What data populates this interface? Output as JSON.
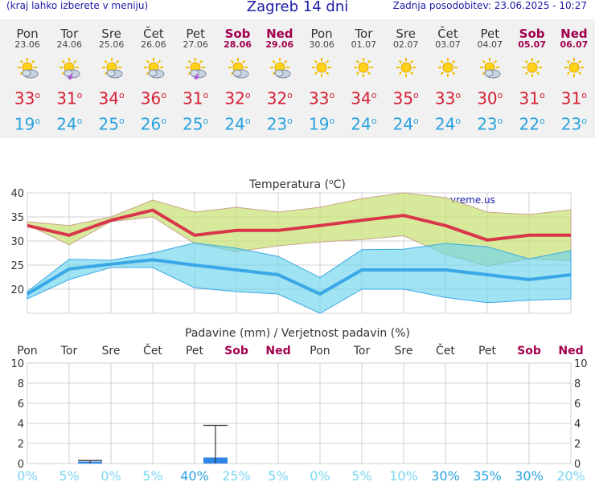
{
  "header": {
    "left_note": "(kraj lahko izberete v meniju)",
    "title": "Zagreb 14 dni",
    "updated": "Zadnja posodobitev: 23.06.2025 - 10:27"
  },
  "days": [
    {
      "name": "Pon",
      "date": "23.06",
      "weekend": false,
      "icon": "sun-cloud-icon",
      "tmax": "33",
      "tmin": "19"
    },
    {
      "name": "Tor",
      "date": "24.06",
      "weekend": false,
      "icon": "thunderstorm-icon",
      "tmax": "31",
      "tmin": "24"
    },
    {
      "name": "Sre",
      "date": "25.06",
      "weekend": false,
      "icon": "sun-cloud-icon",
      "tmax": "34",
      "tmin": "25"
    },
    {
      "name": "Čet",
      "date": "26.06",
      "weekend": false,
      "icon": "sun-cloud-icon",
      "tmax": "36",
      "tmin": "26"
    },
    {
      "name": "Pet",
      "date": "27.06",
      "weekend": false,
      "icon": "thunderstorm-icon",
      "tmax": "31",
      "tmin": "25"
    },
    {
      "name": "Sob",
      "date": "28.06",
      "weekend": true,
      "icon": "sun-cloud-icon",
      "tmax": "32",
      "tmin": "24"
    },
    {
      "name": "Ned",
      "date": "29.06",
      "weekend": true,
      "icon": "sun-cloud-icon",
      "tmax": "32",
      "tmin": "23"
    },
    {
      "name": "Pon",
      "date": "30.06",
      "weekend": false,
      "icon": "sun-icon",
      "tmax": "33",
      "tmin": "19"
    },
    {
      "name": "Tor",
      "date": "01.07",
      "weekend": false,
      "icon": "sun-icon",
      "tmax": "34",
      "tmin": "24"
    },
    {
      "name": "Sre",
      "date": "02.07",
      "weekend": false,
      "icon": "sun-icon",
      "tmax": "35",
      "tmin": "24"
    },
    {
      "name": "Čet",
      "date": "03.07",
      "weekend": false,
      "icon": "sun-icon",
      "tmax": "33",
      "tmin": "24"
    },
    {
      "name": "Pet",
      "date": "04.07",
      "weekend": false,
      "icon": "sun-cloud-icon",
      "tmax": "30",
      "tmin": "23"
    },
    {
      "name": "Sob",
      "date": "05.07",
      "weekend": true,
      "icon": "sun-icon",
      "tmax": "31",
      "tmin": "22"
    },
    {
      "name": "Ned",
      "date": "06.07",
      "weekend": true,
      "icon": "sun-icon",
      "tmax": "31",
      "tmin": "23"
    }
  ],
  "degree_symbol": "o",
  "colors": {
    "max": "#d9364a",
    "min": "#3aa8e6",
    "weekend": "#a0004c",
    "rain_bar": "#2f86e6",
    "prob": "#7ad6f2",
    "prob_strong": "#2aa3df"
  },
  "chart_data": [
    {
      "type": "line",
      "title": "Temperatura (oC)",
      "watermark": "vreme.us",
      "ylim": [
        15,
        40
      ],
      "yticks": [
        15,
        20,
        25,
        30,
        35,
        40
      ],
      "x_count": 14,
      "series": [
        {
          "role": "max",
          "values": [
            33.2,
            31.2,
            34.3,
            36.4,
            31.2,
            32.2,
            32.2,
            33.2,
            34.3,
            35.3,
            33.2,
            30.2,
            31.2,
            31.2
          ],
          "band_low": [
            33.4,
            29.2,
            34.0,
            35.0,
            29.5,
            27.8,
            29.0,
            29.8,
            30.3,
            31.1,
            27.2,
            24.8,
            26.3,
            25.9
          ],
          "band_high": [
            34.0,
            33.2,
            35.0,
            38.5,
            36.0,
            37.0,
            36.0,
            37.0,
            38.8,
            40.0,
            39.0,
            36.0,
            35.5,
            36.5
          ]
        },
        {
          "role": "min",
          "values": [
            19.0,
            24.2,
            25.2,
            26.1,
            25.0,
            24.0,
            23.0,
            19.0,
            24.0,
            24.0,
            24.0,
            23.0,
            22.0,
            23.0
          ],
          "band_low": [
            18.0,
            22.0,
            24.5,
            24.5,
            20.3,
            19.5,
            19.0,
            15.0,
            20.0,
            20.0,
            18.3,
            17.2,
            17.7,
            18.0
          ],
          "band_high": [
            19.5,
            26.2,
            26.0,
            27.5,
            29.6,
            28.5,
            26.8,
            22.4,
            28.2,
            28.3,
            29.5,
            28.8,
            26.3,
            28.0
          ]
        }
      ]
    },
    {
      "type": "bar",
      "title": "Padavine (mm) / Verjetnost padavin (%)",
      "ylim": [
        0,
        10
      ],
      "yticks": [
        0,
        2,
        4,
        6,
        8,
        10
      ],
      "categories": [
        "Pon",
        "Tor",
        "Sre",
        "Čet",
        "Pet",
        "Sob",
        "Ned",
        "Pon",
        "Tor",
        "Sre",
        "Čet",
        "Pet",
        "Sob",
        "Ned"
      ],
      "weekend": [
        false,
        false,
        false,
        false,
        false,
        true,
        true,
        false,
        false,
        false,
        false,
        false,
        true,
        true
      ],
      "values": [
        0,
        0.2,
        0,
        0,
        0.6,
        0,
        0,
        0,
        0,
        0,
        0,
        0,
        0,
        0
      ],
      "error_high": [
        null,
        0.3,
        null,
        null,
        3.8,
        null,
        null,
        null,
        null,
        null,
        null,
        null,
        null,
        null
      ],
      "probability": [
        "0%",
        "5%",
        "0%",
        "5%",
        "40%",
        "25%",
        "5%",
        "0%",
        "5%",
        "10%",
        "30%",
        "35%",
        "30%",
        "20%"
      ]
    }
  ]
}
